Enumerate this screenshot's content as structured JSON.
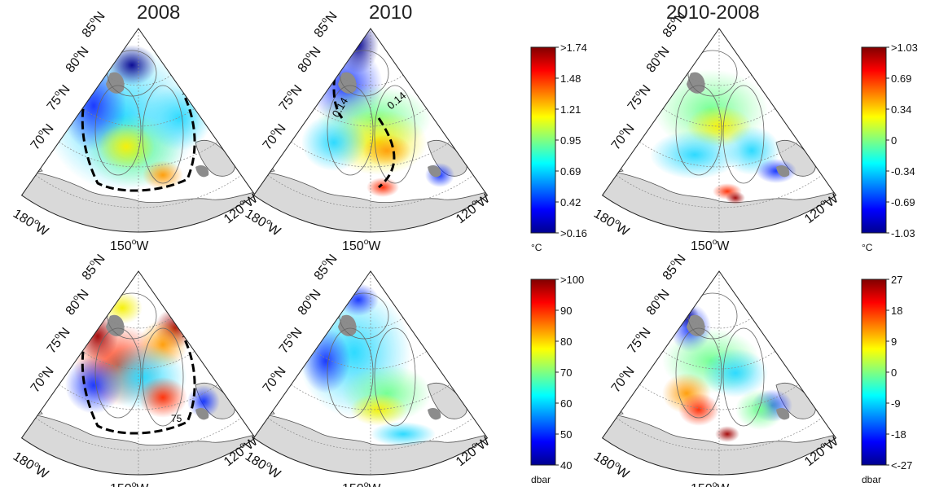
{
  "column_titles": [
    "2008",
    "2010",
    "2010-2008"
  ],
  "map_labels": {
    "lat": [
      "85",
      "80",
      "75",
      "70"
    ],
    "lat_suffix": "N",
    "lon": [
      "180",
      "150",
      "120"
    ],
    "lon_suffix": "W",
    "degree_symbol": "o"
  },
  "contour_labels": {
    "2010_temperature": [
      "0.14",
      "0.14"
    ],
    "2008_depth": [
      "75"
    ]
  },
  "colors": {
    "land": "#d9d9d9",
    "land_edge": "#555555",
    "graticule": "#888888",
    "ice_patch": "#8c8c8c"
  },
  "chart_data": [
    {
      "type": "heatmap",
      "title": "",
      "colorbar_ticks": [
        ">1.74",
        "1.48",
        "1.21",
        "0.95",
        "0.69",
        "0.42",
        ">0.16"
      ],
      "colorbar_unit": "°C",
      "colormap": "jet",
      "panels": [
        "2008",
        "2010"
      ]
    },
    {
      "type": "heatmap",
      "title": "",
      "colorbar_ticks": [
        ">1.03",
        "0.69",
        "0.34",
        "0",
        "-0.34",
        "-0.69",
        "-1.03"
      ],
      "colorbar_unit": "°C",
      "colormap": "jet",
      "panels": [
        "2010-2008"
      ]
    },
    {
      "type": "heatmap",
      "title": "",
      "colorbar_ticks": [
        ">100",
        "90",
        "80",
        "70",
        "60",
        "50",
        "40"
      ],
      "colorbar_unit": "dbar",
      "colormap": "jet",
      "panels": [
        "2008",
        "2010"
      ]
    },
    {
      "type": "heatmap",
      "title": "",
      "colorbar_ticks": [
        "27",
        "18",
        "9",
        "0",
        "-9",
        "-18",
        "<-27"
      ],
      "colorbar_unit": "dbar",
      "colormap": "jet",
      "panels": [
        "2010-2008"
      ]
    }
  ]
}
